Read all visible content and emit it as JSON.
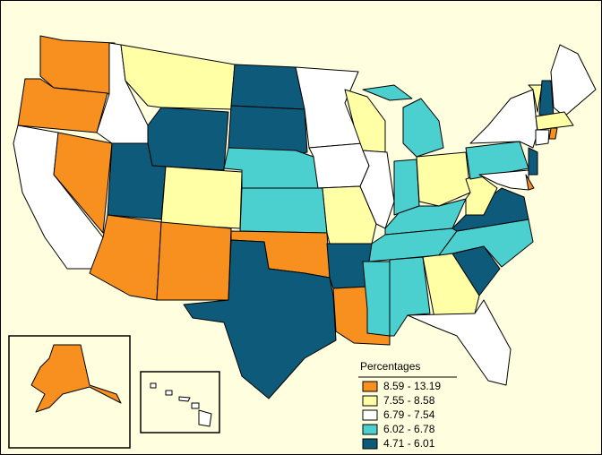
{
  "legend": {
    "title": "Percentages",
    "items": [
      {
        "label": "8.59 - 13.19",
        "color": "#f7901e"
      },
      {
        "label": "7.55 - 8.58",
        "color": "#ffffa6"
      },
      {
        "label": "6.79 - 7.54",
        "color": "#ffffff"
      },
      {
        "label": "6.02 - 6.78",
        "color": "#4ccfcf"
      },
      {
        "label": "4.71 - 6.01",
        "color": "#0e5a7a"
      }
    ]
  }
}
